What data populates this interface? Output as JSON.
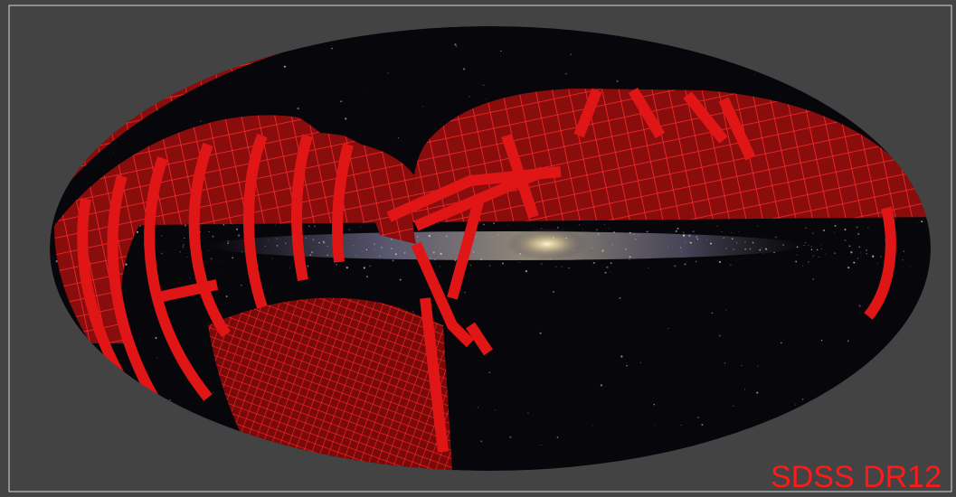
{
  "label": "SDSS DR12"
}
